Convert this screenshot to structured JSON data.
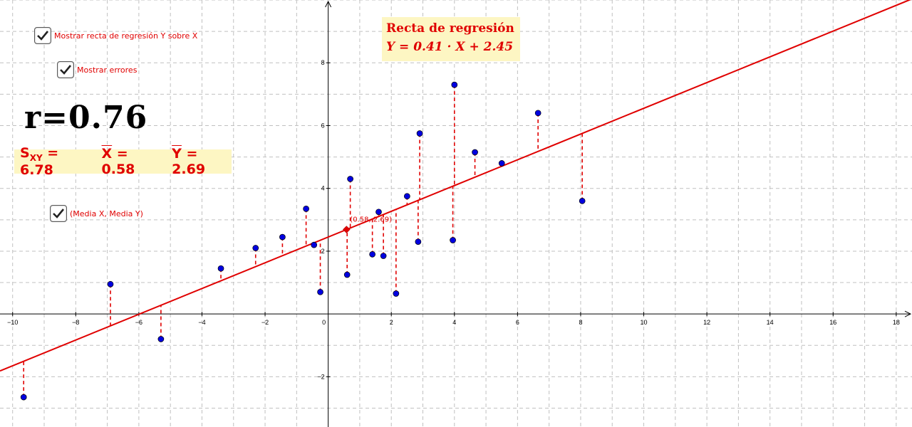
{
  "checkboxes": [
    {
      "label": "Mostrar recta de regresión Y sobre X",
      "checked": true
    },
    {
      "label": "Mostrar errores",
      "checked": true
    },
    {
      "label": "(Media X, Media Y)",
      "checked": true
    }
  ],
  "r_text": "r=0.76",
  "stats": {
    "sxy": "S",
    "sxy_sub": "XY",
    "sxy_val": " = 6.78",
    "xbar": "X",
    "xbar_val": " = 0.58",
    "ybar": "Y",
    "ybar_val": " = 2.69"
  },
  "regression_box": {
    "title": "Recta de regresión",
    "equation": "Y = 0.41 · X + 2.45"
  },
  "mean_point_label": "(0.58, 2.69)",
  "colors": {
    "line": "#e00000",
    "point": "#0000e0",
    "grid": "#c0c0c0",
    "box": "#fdf6c3"
  },
  "chart_data": {
    "type": "scatter",
    "xlim": [
      -10.4,
      18.5
    ],
    "ylim": [
      -3.6,
      10
    ],
    "x_ticks": [
      -10,
      -8,
      -6,
      -4,
      -2,
      0,
      2,
      4,
      6,
      8,
      10,
      12,
      14,
      16,
      18
    ],
    "y_ticks": [
      -2,
      2,
      4,
      6,
      8
    ],
    "grid": true,
    "regression": {
      "slope": 0.41,
      "intercept": 2.45
    },
    "mean_point": {
      "x": 0.58,
      "y": 2.69
    },
    "points": [
      {
        "x": -9.65,
        "y": -2.65
      },
      {
        "x": -6.9,
        "y": 0.95
      },
      {
        "x": -5.3,
        "y": -0.8
      },
      {
        "x": -3.4,
        "y": 1.45
      },
      {
        "x": -2.3,
        "y": 2.1
      },
      {
        "x": -1.45,
        "y": 2.45
      },
      {
        "x": -0.7,
        "y": 3.35
      },
      {
        "x": -0.45,
        "y": 2.2
      },
      {
        "x": -0.25,
        "y": 0.7
      },
      {
        "x": 0.6,
        "y": 1.25
      },
      {
        "x": 0.7,
        "y": 4.3
      },
      {
        "x": 1.4,
        "y": 1.9
      },
      {
        "x": 1.6,
        "y": 3.25
      },
      {
        "x": 1.75,
        "y": 1.85
      },
      {
        "x": 2.15,
        "y": 0.65
      },
      {
        "x": 2.5,
        "y": 3.75
      },
      {
        "x": 2.85,
        "y": 2.3
      },
      {
        "x": 2.9,
        "y": 5.75
      },
      {
        "x": 3.95,
        "y": 2.35
      },
      {
        "x": 4.0,
        "y": 7.3
      },
      {
        "x": 4.65,
        "y": 5.15
      },
      {
        "x": 5.5,
        "y": 4.8
      },
      {
        "x": 6.65,
        "y": 6.4
      },
      {
        "x": 8.05,
        "y": 3.6
      }
    ]
  }
}
